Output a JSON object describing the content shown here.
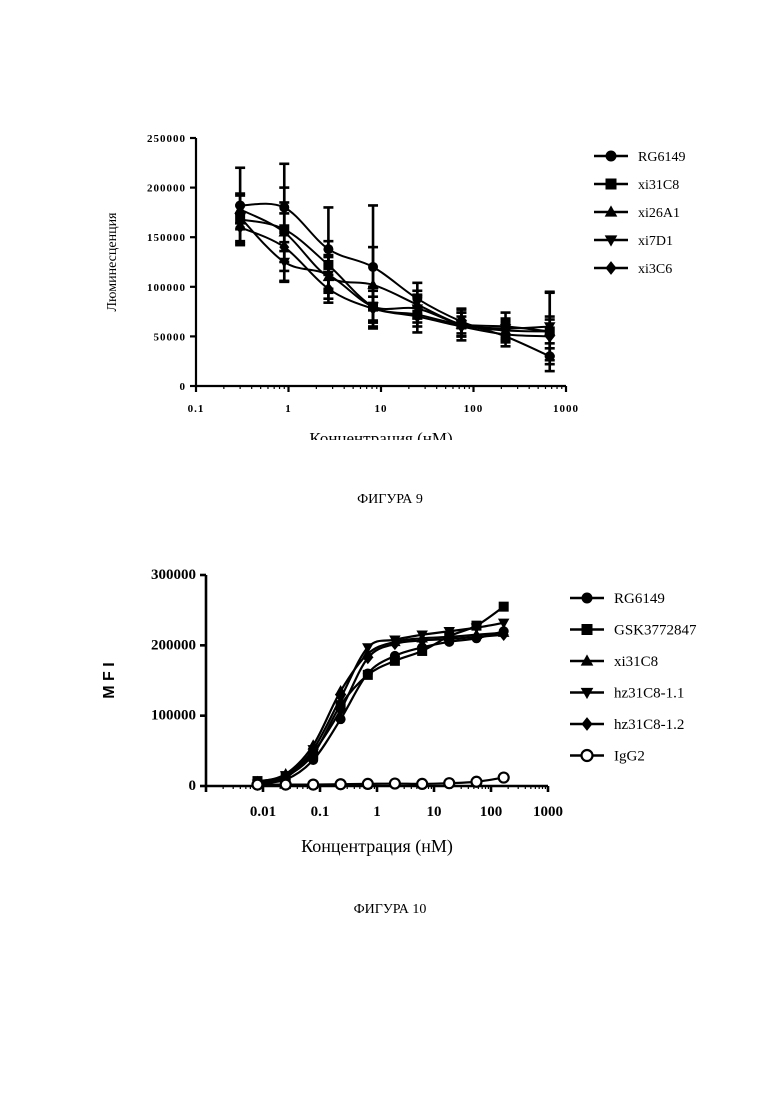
{
  "figures": [
    {
      "caption": "ФИГУРА 9",
      "chart_data": {
        "type": "scatter",
        "xlabel": "Концентрация (нМ)",
        "ylabel": "Люминесценция",
        "xscale": "log",
        "xlim": [
          0.1,
          1000
        ],
        "ylim": [
          0,
          250000
        ],
        "xticks": [
          "0.1",
          "1",
          "10",
          "100",
          "1000"
        ],
        "yticks": [
          "0",
          "50000",
          "100000",
          "150000",
          "200000",
          "250000"
        ],
        "legend_position": "right",
        "fit_curves": true,
        "error_bars": true,
        "x": [
          0.3,
          0.9,
          2.7,
          8.2,
          24.7,
          74,
          222,
          667
        ],
        "series": [
          {
            "name": "RG6149",
            "marker": "circle",
            "values": [
              182000,
              180000,
              138000,
              120000,
              88000,
              65000,
              50000,
              30000
            ],
            "errors": [
              38000,
              44000,
              42000,
              62000,
              16000,
              12000,
              10000,
              8000
            ]
          },
          {
            "name": "xi31C8",
            "marker": "square",
            "values": [
              168000,
              158000,
              122000,
              80000,
              72000,
              62000,
              60000,
              55000
            ],
            "errors": [
              26000,
              42000,
              24000,
              20000,
              18000,
              16000,
              14000,
              12000
            ]
          },
          {
            "name": "xi26A1",
            "marker": "triangle-up",
            "values": [
              178000,
              155000,
              110000,
              102000,
              82000,
              62000,
              56000,
              55000
            ],
            "errors": [
              14000,
              30000,
              22000,
              38000,
              14000,
              12000,
              10000,
              40000
            ]
          },
          {
            "name": "xi7D1",
            "marker": "triangle-down",
            "values": [
              170000,
              125000,
              112000,
              80000,
              78000,
              62000,
              58000,
              60000
            ],
            "errors": [
              12000,
              20000,
              18000,
              16000,
              14000,
              12000,
              10000,
              34000
            ]
          },
          {
            "name": "xi3C6",
            "marker": "diamond",
            "values": [
              160000,
              140000,
              98000,
              78000,
              70000,
              60000,
              52000,
              50000
            ],
            "errors": [
              14000,
              34000,
              14000,
              12000,
              10000,
              10000,
              8000,
              20000
            ]
          }
        ]
      }
    },
    {
      "caption": "ФИГУРА 10",
      "chart_data": {
        "type": "scatter",
        "xlabel": "Концентрация (нМ)",
        "ylabel": "M F I",
        "xscale": "log",
        "xlim": [
          0.001,
          1000
        ],
        "ylim": [
          0,
          300000
        ],
        "xticks": [
          "0.01",
          "0.1",
          "1",
          "10",
          "100",
          "1000"
        ],
        "yticks": [
          "0",
          "100000",
          "200000",
          "300000"
        ],
        "legend_position": "right",
        "fit_curves": true,
        "x": [
          0.008,
          0.025,
          0.076,
          0.23,
          0.69,
          2.06,
          6.2,
          18.5,
          55.6,
          167
        ],
        "series": [
          {
            "name": "RG6149",
            "marker": "circle",
            "values": [
              4000,
              9000,
              37000,
              95000,
              160000,
              185000,
              197000,
              205000,
              210000,
              220000
            ]
          },
          {
            "name": "GSK3772847",
            "marker": "square",
            "values": [
              7000,
              14000,
              45000,
              115000,
              158000,
              178000,
              192000,
              213000,
              228000,
              255000
            ]
          },
          {
            "name": "xi31C8",
            "marker": "triangle-up",
            "values": [
              6000,
              17000,
              58000,
              135000,
              188000,
              205000,
              210000,
              212000,
              215000,
              218000
            ]
          },
          {
            "name": "hz31C8-1.1",
            "marker": "triangle-down",
            "values": [
              3000,
              15000,
              52000,
              125000,
              197000,
              208000,
              215000,
              220000,
              225000,
              232000
            ]
          },
          {
            "name": "hz31C8-1.2",
            "marker": "diamond",
            "values": [
              2000,
              12000,
              48000,
              108000,
              182000,
              202000,
              207000,
              209000,
              212000,
              215000
            ]
          },
          {
            "name": "IgG2",
            "marker": "circle-open",
            "values": [
              2000,
              2000,
              2000,
              2500,
              3000,
              3500,
              3000,
              4000,
              6000,
              12000
            ]
          }
        ]
      }
    }
  ]
}
